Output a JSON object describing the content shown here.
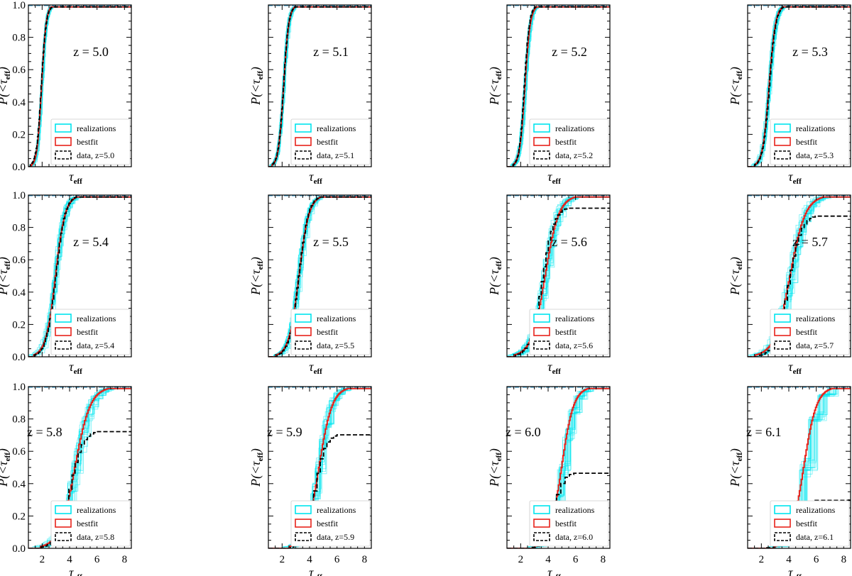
{
  "chart_data": [
    {
      "type": "line",
      "panel_label": "z = 5.0",
      "xlabel": "τeff",
      "ylabel": "P(<τeff)",
      "xlim": [
        1,
        8.5
      ],
      "ylim": [
        0,
        1
      ],
      "yticks": [
        0.0,
        0.2,
        0.4,
        0.6,
        0.8,
        1.0
      ],
      "xticks": [],
      "show_xticks": false,
      "show_yticklabels": true,
      "label_position": "upper-middle",
      "legend": [
        "realizations",
        "bestfit",
        "data, z=5.0"
      ],
      "bestfit": {
        "mu": 1.95,
        "sigma": 0.28
      },
      "data_curve": {
        "mu": 1.92,
        "sigma": 0.3,
        "plateau": 1.0,
        "steps": 30
      }
    },
    {
      "type": "line",
      "panel_label": "z = 5.1",
      "xlabel": "τeff",
      "ylabel": "P(<τeff)",
      "xlim": [
        1,
        8.5
      ],
      "ylim": [
        0,
        1
      ],
      "yticks": [
        0.0,
        0.2,
        0.4,
        0.6,
        0.8,
        1.0
      ],
      "xticks": [],
      "show_xticks": false,
      "show_yticklabels": false,
      "label_position": "upper-middle",
      "legend": [
        "realizations",
        "bestfit",
        "data, z=5.1"
      ],
      "bestfit": {
        "mu": 2.1,
        "sigma": 0.32
      },
      "data_curve": {
        "mu": 2.08,
        "sigma": 0.32,
        "plateau": 1.0,
        "steps": 30
      }
    },
    {
      "type": "line",
      "panel_label": "z = 5.2",
      "xlabel": "τeff",
      "ylabel": "P(<τeff)",
      "xlim": [
        1,
        8.5
      ],
      "ylim": [
        0,
        1
      ],
      "yticks": [
        0.0,
        0.2,
        0.4,
        0.6,
        0.8,
        1.0
      ],
      "xticks": [],
      "show_xticks": false,
      "show_yticklabels": false,
      "label_position": "upper-middle",
      "legend": [
        "realizations",
        "bestfit",
        "data, z=5.2"
      ],
      "bestfit": {
        "mu": 2.3,
        "sigma": 0.33
      },
      "data_curve": {
        "mu": 2.25,
        "sigma": 0.31,
        "plateau": 1.0,
        "steps": 30
      }
    },
    {
      "type": "line",
      "panel_label": "z = 5.3",
      "xlabel": "τeff",
      "ylabel": "P(<τeff)",
      "xlim": [
        1,
        8.5
      ],
      "ylim": [
        0,
        1
      ],
      "yticks": [
        0.0,
        0.2,
        0.4,
        0.6,
        0.8,
        1.0
      ],
      "xticks": [],
      "show_xticks": false,
      "show_yticklabels": false,
      "label_position": "upper-middle",
      "legend": [
        "realizations",
        "bestfit",
        "data, z=5.3"
      ],
      "bestfit": {
        "mu": 2.55,
        "sigma": 0.4
      },
      "data_curve": {
        "mu": 2.55,
        "sigma": 0.4,
        "plateau": 1.0,
        "steps": 30
      }
    },
    {
      "type": "line",
      "panel_label": "z = 5.4",
      "xlabel": "τeff",
      "ylabel": "P(<τeff)",
      "xlim": [
        1,
        8.5
      ],
      "ylim": [
        0,
        1
      ],
      "yticks": [
        0.0,
        0.2,
        0.4,
        0.6,
        0.8,
        1.0
      ],
      "xticks": [],
      "show_xticks": false,
      "show_yticklabels": true,
      "label_position": "upper-middle",
      "legend": [
        "realizations",
        "bestfit",
        "data, z=5.4"
      ],
      "bestfit": {
        "mu": 2.95,
        "sigma": 0.6
      },
      "data_curve": {
        "mu": 2.95,
        "sigma": 0.58,
        "plateau": 1.0,
        "steps": 30
      }
    },
    {
      "type": "line",
      "panel_label": "z = 5.5",
      "xlabel": "τeff",
      "ylabel": "P(<τeff)",
      "xlim": [
        1,
        8.5
      ],
      "ylim": [
        0,
        1
      ],
      "yticks": [
        0.0,
        0.2,
        0.4,
        0.6,
        0.8,
        1.0
      ],
      "xticks": [],
      "show_xticks": false,
      "show_yticklabels": false,
      "label_position": "upper-middle",
      "legend": [
        "realizations",
        "bestfit",
        "data, z=5.5"
      ],
      "bestfit": {
        "mu": 3.2,
        "sigma": 0.62
      },
      "data_curve": {
        "mu": 3.18,
        "sigma": 0.6,
        "plateau": 1.0,
        "steps": 30
      }
    },
    {
      "type": "line",
      "panel_label": "z = 5.6",
      "xlabel": "τeff",
      "ylabel": "P(<τeff)",
      "xlim": [
        1,
        8.5
      ],
      "ylim": [
        0,
        1
      ],
      "yticks": [
        0.0,
        0.2,
        0.4,
        0.6,
        0.8,
        1.0
      ],
      "xticks": [],
      "show_xticks": false,
      "show_yticklabels": false,
      "label_position": "upper-middle",
      "legend": [
        "realizations",
        "bestfit",
        "data, z=5.6"
      ],
      "bestfit": {
        "mu": 3.75,
        "sigma": 0.85
      },
      "data_curve": {
        "mu": 3.5,
        "sigma": 0.72,
        "plateau": 0.93,
        "steps": 22
      }
    },
    {
      "type": "line",
      "panel_label": "z = 5.7",
      "xlabel": "τeff",
      "ylabel": "P(<τeff)",
      "xlim": [
        1,
        8.5
      ],
      "ylim": [
        0,
        1
      ],
      "yticks": [
        0.0,
        0.2,
        0.4,
        0.6,
        0.8,
        1.0
      ],
      "xticks": [],
      "show_xticks": false,
      "show_yticklabels": false,
      "label_position": "upper-middle",
      "legend": [
        "realizations",
        "bestfit",
        "data, z=5.7"
      ],
      "bestfit": {
        "mu": 4.05,
        "sigma": 0.95
      },
      "data_curve": {
        "mu": 3.9,
        "sigma": 0.78,
        "plateau": 0.88,
        "steps": 20
      }
    },
    {
      "type": "line",
      "panel_label": "z = 5.8",
      "xlabel": "τeff",
      "ylabel": "P(<τeff)",
      "xlim": [
        1,
        8.5
      ],
      "ylim": [
        0,
        1
      ],
      "yticks": [
        0.0,
        0.2,
        0.4,
        0.6,
        0.8,
        1.0
      ],
      "xticks": [
        2,
        4,
        6,
        8
      ],
      "show_xticks": true,
      "show_yticklabels": true,
      "label_position": "left-middle",
      "legend": [
        "realizations",
        "bestfit",
        "data, z=5.8"
      ],
      "bestfit": {
        "mu": 4.35,
        "sigma": 0.95
      },
      "data_curve": {
        "mu": 3.95,
        "sigma": 0.78,
        "plateau": 0.73,
        "steps": 18
      }
    },
    {
      "type": "line",
      "panel_label": "z = 5.9",
      "xlabel": "τeff",
      "ylabel": "P(<τeff)",
      "xlim": [
        1,
        8.5
      ],
      "ylim": [
        0,
        1
      ],
      "yticks": [
        0.0,
        0.2,
        0.4,
        0.6,
        0.8,
        1.0
      ],
      "xticks": [
        2,
        4,
        6,
        8
      ],
      "show_xticks": true,
      "show_yticklabels": false,
      "label_position": "left-middle",
      "legend": [
        "realizations",
        "bestfit",
        "data, z=5.9"
      ],
      "bestfit": {
        "mu": 4.65,
        "sigma": 0.82
      },
      "data_curve": {
        "mu": 4.3,
        "sigma": 0.65,
        "plateau": 0.71,
        "steps": 14
      }
    },
    {
      "type": "line",
      "panel_label": "z = 6.0",
      "xlabel": "τeff",
      "ylabel": "P(<τeff)",
      "xlim": [
        1,
        8.5
      ],
      "ylim": [
        0,
        1
      ],
      "yticks": [
        0.0,
        0.2,
        0.4,
        0.6,
        0.8,
        1.0
      ],
      "xticks": [
        2,
        4,
        6,
        8
      ],
      "show_xticks": true,
      "show_yticklabels": false,
      "label_position": "left-middle",
      "legend": [
        "realizations",
        "bestfit",
        "data, z=6.0"
      ],
      "bestfit": {
        "mu": 4.95,
        "sigma": 0.75
      },
      "data_curve": {
        "mu": 4.3,
        "sigma": 0.6,
        "plateau": 0.47,
        "steps": 10
      }
    },
    {
      "type": "line",
      "panel_label": "z = 6.1",
      "xlabel": "τeff",
      "ylabel": "P(<τeff)",
      "xlim": [
        1,
        8.5
      ],
      "ylim": [
        0,
        1
      ],
      "yticks": [
        0.0,
        0.2,
        0.4,
        0.6,
        0.8,
        1.0
      ],
      "xticks": [
        2,
        4,
        6,
        8
      ],
      "show_xticks": true,
      "show_yticklabels": false,
      "label_position": "left-middle",
      "legend": [
        "realizations",
        "bestfit",
        "data, z=6.1"
      ],
      "bestfit": {
        "mu": 5.05,
        "sigma": 0.8
      },
      "data_curve": {
        "mu": 4.1,
        "sigma": 0.7,
        "plateau": 0.3,
        "steps": 6
      }
    }
  ],
  "colors": {
    "realizations": "#00e5ee",
    "bestfit": "#e8221b",
    "data": "#000000",
    "reference": "#3399cc"
  }
}
